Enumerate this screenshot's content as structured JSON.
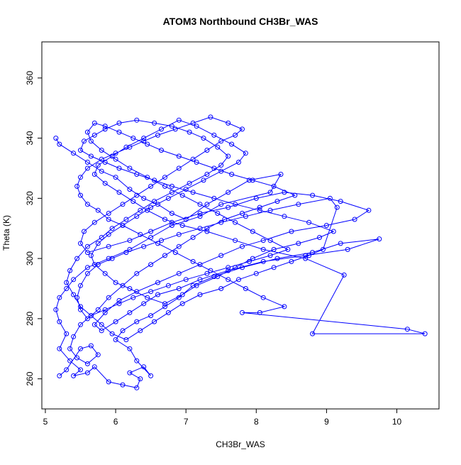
{
  "colors": {
    "series": "#0000ff",
    "axis": "#000000",
    "background": "#ffffff"
  },
  "chart_data": {
    "type": "scatter",
    "title": "ATOM3 Northbound CH3Br_WAS",
    "xlabel": "CH3Br_WAS",
    "ylabel": "Theta (K)",
    "xlim": [
      4.95,
      10.6
    ],
    "ylim": [
      250,
      372
    ],
    "xticks": [
      5,
      6,
      7,
      8,
      9,
      10
    ],
    "yticks": [
      260,
      280,
      300,
      320,
      340,
      360
    ],
    "grid": false,
    "legend": "none",
    "marker": "open-circle",
    "line": "connected",
    "series": [
      {
        "values": [
          [
            5.15,
            340
          ],
          [
            5.2,
            338
          ],
          [
            5.4,
            335
          ],
          [
            5.6,
            332
          ],
          [
            5.8,
            329
          ],
          [
            6.0,
            327
          ],
          [
            6.2,
            323
          ],
          [
            6.4,
            320
          ],
          [
            6.6,
            318
          ],
          [
            6.8,
            315
          ],
          [
            7.0,
            313
          ],
          [
            7.3,
            318
          ],
          [
            7.6,
            322
          ],
          [
            7.9,
            326
          ],
          [
            8.35,
            328
          ],
          [
            8.2,
            322
          ],
          [
            7.5,
            318
          ],
          [
            7.2,
            314
          ],
          [
            6.8,
            311
          ],
          [
            6.5,
            307
          ],
          [
            6.2,
            303
          ],
          [
            5.9,
            300
          ],
          [
            5.6,
            297
          ],
          [
            5.4,
            293
          ],
          [
            5.3,
            290
          ],
          [
            5.2,
            287
          ],
          [
            5.15,
            283
          ],
          [
            5.2,
            279
          ],
          [
            5.3,
            275
          ],
          [
            5.2,
            270
          ],
          [
            5.35,
            266
          ],
          [
            5.5,
            263
          ],
          [
            5.4,
            261
          ],
          [
            5.6,
            262
          ],
          [
            5.7,
            264
          ],
          [
            5.9,
            259
          ],
          [
            6.1,
            258
          ],
          [
            6.3,
            257
          ],
          [
            6.35,
            260
          ],
          [
            6.2,
            262
          ],
          [
            6.4,
            264
          ],
          [
            6.5,
            261
          ],
          [
            6.3,
            266
          ],
          [
            6.2,
            270
          ],
          [
            6.0,
            273
          ],
          [
            6.1,
            276
          ],
          [
            6.3,
            279
          ],
          [
            6.5,
            281
          ],
          [
            6.7,
            284
          ],
          [
            6.9,
            287
          ],
          [
            7.1,
            291
          ],
          [
            7.4,
            294
          ],
          [
            7.8,
            297
          ],
          [
            8.3,
            300
          ],
          [
            8.8,
            302
          ],
          [
            9.2,
            305
          ],
          [
            9.75,
            306.5
          ],
          [
            9.3,
            303
          ],
          [
            8.7,
            301
          ],
          [
            8.1,
            299
          ],
          [
            7.6,
            296
          ],
          [
            7.2,
            293
          ],
          [
            6.9,
            290
          ],
          [
            6.6,
            288
          ],
          [
            6.4,
            285
          ],
          [
            6.2,
            282
          ],
          [
            6.0,
            279
          ],
          [
            5.8,
            276
          ],
          [
            5.7,
            278
          ],
          [
            5.85,
            282
          ],
          [
            6.05,
            286
          ],
          [
            6.3,
            289
          ],
          [
            6.6,
            292
          ],
          [
            6.9,
            295
          ],
          [
            7.2,
            298
          ],
          [
            7.5,
            301
          ],
          [
            7.8,
            304
          ],
          [
            8.1,
            306
          ],
          [
            8.5,
            309
          ],
          [
            9.0,
            311
          ],
          [
            9.4,
            313
          ],
          [
            9.6,
            316
          ],
          [
            9.2,
            319
          ],
          [
            8.8,
            321
          ],
          [
            8.4,
            322
          ],
          [
            8.0,
            320
          ],
          [
            7.6,
            317
          ],
          [
            7.2,
            315
          ],
          [
            6.8,
            312
          ],
          [
            6.5,
            309
          ],
          [
            6.2,
            306
          ],
          [
            5.9,
            304
          ],
          [
            5.6,
            302
          ],
          [
            5.5,
            305
          ],
          [
            5.55,
            309
          ],
          [
            5.7,
            312
          ],
          [
            5.9,
            315
          ],
          [
            6.1,
            318
          ],
          [
            6.3,
            321
          ],
          [
            6.5,
            324
          ],
          [
            6.7,
            327
          ],
          [
            6.9,
            330
          ],
          [
            7.1,
            333
          ],
          [
            7.3,
            336
          ],
          [
            7.5,
            339
          ],
          [
            7.7,
            341
          ],
          [
            7.8,
            343
          ],
          [
            7.6,
            345
          ],
          [
            7.35,
            347
          ],
          [
            7.1,
            345
          ],
          [
            6.85,
            343
          ],
          [
            6.6,
            341
          ],
          [
            6.4,
            339
          ],
          [
            6.2,
            337
          ],
          [
            6.0,
            335
          ],
          [
            5.8,
            333
          ],
          [
            5.6,
            330
          ],
          [
            5.5,
            327
          ],
          [
            5.45,
            324
          ],
          [
            5.5,
            321
          ],
          [
            5.6,
            318
          ],
          [
            5.75,
            316
          ],
          [
            5.9,
            313
          ],
          [
            6.1,
            311
          ],
          [
            6.35,
            308
          ],
          [
            6.6,
            305
          ],
          [
            6.85,
            302
          ],
          [
            7.1,
            299
          ],
          [
            7.35,
            296
          ],
          [
            7.6,
            293
          ],
          [
            7.85,
            290
          ],
          [
            8.1,
            287
          ],
          [
            8.4,
            284
          ],
          [
            8.05,
            282
          ],
          [
            7.8,
            282
          ],
          [
            10.15,
            276.5
          ],
          [
            10.4,
            275
          ],
          [
            8.8,
            275
          ],
          [
            9.25,
            294.5
          ],
          [
            8.7,
            300
          ],
          [
            8.1,
            303
          ],
          [
            7.7,
            306
          ],
          [
            7.3,
            309
          ],
          [
            6.95,
            311
          ],
          [
            6.7,
            313
          ],
          [
            6.45,
            316
          ],
          [
            6.25,
            319
          ],
          [
            6.05,
            322
          ],
          [
            5.85,
            325
          ],
          [
            5.7,
            328
          ],
          [
            5.75,
            331
          ],
          [
            5.95,
            334
          ],
          [
            6.15,
            337
          ],
          [
            6.4,
            340
          ],
          [
            6.65,
            343
          ],
          [
            6.9,
            346
          ],
          [
            7.15,
            344
          ],
          [
            7.4,
            341
          ],
          [
            7.65,
            338
          ],
          [
            7.85,
            335
          ],
          [
            7.75,
            332
          ],
          [
            7.5,
            329
          ],
          [
            7.25,
            326
          ],
          [
            7.0,
            323
          ],
          [
            6.75,
            320
          ],
          [
            6.5,
            317
          ],
          [
            6.3,
            314
          ],
          [
            6.1,
            311
          ],
          [
            5.9,
            308
          ],
          [
            5.75,
            305
          ],
          [
            5.65,
            301
          ],
          [
            5.7,
            298
          ],
          [
            5.85,
            295
          ],
          [
            6.0,
            292
          ],
          [
            6.2,
            290
          ],
          [
            6.45,
            287
          ],
          [
            6.7,
            285
          ],
          [
            6.95,
            288
          ],
          [
            7.15,
            291
          ],
          [
            7.45,
            294
          ],
          [
            7.7,
            297
          ],
          [
            7.95,
            300
          ],
          [
            8.25,
            303
          ],
          [
            8.6,
            305
          ],
          [
            8.9,
            307
          ],
          [
            9.1,
            309
          ],
          [
            8.75,
            312
          ],
          [
            8.4,
            314
          ],
          [
            8.05,
            316
          ],
          [
            7.7,
            318
          ],
          [
            7.4,
            320
          ],
          [
            7.1,
            322
          ],
          [
            6.8,
            324
          ],
          [
            6.55,
            326
          ],
          [
            6.3,
            328
          ],
          [
            6.05,
            330
          ],
          [
            5.85,
            332
          ],
          [
            5.65,
            334
          ],
          [
            5.5,
            336
          ],
          [
            5.55,
            339
          ],
          [
            5.7,
            341
          ],
          [
            5.85,
            343
          ],
          [
            6.05,
            345
          ],
          [
            6.3,
            346
          ],
          [
            6.55,
            345
          ],
          [
            6.8,
            344
          ],
          [
            7.05,
            342
          ],
          [
            7.25,
            340
          ],
          [
            7.45,
            337
          ],
          [
            7.6,
            334
          ],
          [
            7.5,
            331
          ],
          [
            7.3,
            328
          ],
          [
            7.05,
            325
          ],
          [
            6.8,
            322
          ],
          [
            6.55,
            319
          ],
          [
            6.35,
            316
          ],
          [
            6.15,
            313
          ],
          [
            5.95,
            310
          ],
          [
            5.8,
            307
          ],
          [
            5.6,
            304
          ],
          [
            5.45,
            300
          ],
          [
            5.35,
            296
          ],
          [
            5.3,
            292
          ],
          [
            5.4,
            288
          ],
          [
            5.5,
            284
          ],
          [
            5.65,
            281
          ],
          [
            5.8,
            278
          ],
          [
            5.95,
            275
          ],
          [
            6.15,
            273
          ],
          [
            6.35,
            276
          ],
          [
            6.55,
            279
          ],
          [
            6.75,
            282
          ],
          [
            6.95,
            285
          ],
          [
            7.2,
            288
          ],
          [
            7.5,
            290
          ],
          [
            7.75,
            293
          ],
          [
            8.0,
            295
          ],
          [
            8.25,
            297
          ],
          [
            8.5,
            299
          ],
          [
            8.75,
            301
          ],
          [
            8.95,
            303
          ],
          [
            9.15,
            317
          ],
          [
            9.05,
            320
          ],
          [
            8.6,
            318
          ],
          [
            8.2,
            316
          ],
          [
            7.85,
            314
          ],
          [
            7.5,
            312
          ],
          [
            7.2,
            310
          ],
          [
            6.9,
            308
          ],
          [
            6.65,
            306
          ],
          [
            6.4,
            304
          ],
          [
            6.15,
            302
          ],
          [
            5.95,
            300
          ],
          [
            5.75,
            298
          ],
          [
            5.6,
            295
          ],
          [
            5.5,
            291
          ],
          [
            5.45,
            287
          ],
          [
            5.5,
            283
          ],
          [
            5.6,
            280
          ],
          [
            5.75,
            283
          ],
          [
            5.9,
            287
          ],
          [
            6.1,
            291
          ],
          [
            6.3,
            295
          ],
          [
            6.5,
            298
          ],
          [
            6.7,
            301
          ],
          [
            6.9,
            304
          ],
          [
            7.1,
            307
          ],
          [
            7.3,
            310
          ],
          [
            7.55,
            313
          ],
          [
            7.8,
            315
          ],
          [
            8.05,
            317
          ],
          [
            8.3,
            319
          ],
          [
            8.55,
            321
          ],
          [
            8.25,
            324
          ],
          [
            7.95,
            326
          ],
          [
            7.65,
            328
          ],
          [
            7.4,
            330
          ],
          [
            7.15,
            332
          ],
          [
            6.9,
            334
          ],
          [
            6.65,
            336
          ],
          [
            6.45,
            338
          ],
          [
            6.25,
            340
          ],
          [
            6.05,
            342
          ],
          [
            5.85,
            344
          ],
          [
            5.7,
            345
          ],
          [
            5.6,
            342
          ],
          [
            5.65,
            339
          ],
          [
            5.8,
            336
          ],
          [
            6.0,
            333
          ],
          [
            6.2,
            330
          ],
          [
            6.45,
            327
          ],
          [
            6.7,
            324
          ],
          [
            6.95,
            321
          ],
          [
            7.2,
            318
          ],
          [
            7.45,
            315
          ],
          [
            7.7,
            312
          ],
          [
            7.95,
            309
          ],
          [
            8.2,
            306
          ],
          [
            8.45,
            303
          ],
          [
            8.2,
            301
          ],
          [
            7.9,
            299
          ],
          [
            7.6,
            297
          ],
          [
            7.3,
            295
          ],
          [
            7.0,
            293
          ],
          [
            6.75,
            291
          ],
          [
            6.5,
            289
          ],
          [
            6.25,
            287
          ],
          [
            6.05,
            285
          ],
          [
            5.85,
            283
          ],
          [
            5.65,
            281
          ],
          [
            5.5,
            278
          ],
          [
            5.4,
            274
          ],
          [
            5.35,
            270
          ],
          [
            5.45,
            267
          ],
          [
            5.6,
            265
          ],
          [
            5.75,
            268
          ],
          [
            5.65,
            271
          ],
          [
            5.5,
            270
          ],
          [
            5.3,
            263
          ],
          [
            5.2,
            261
          ]
        ]
      }
    ]
  }
}
